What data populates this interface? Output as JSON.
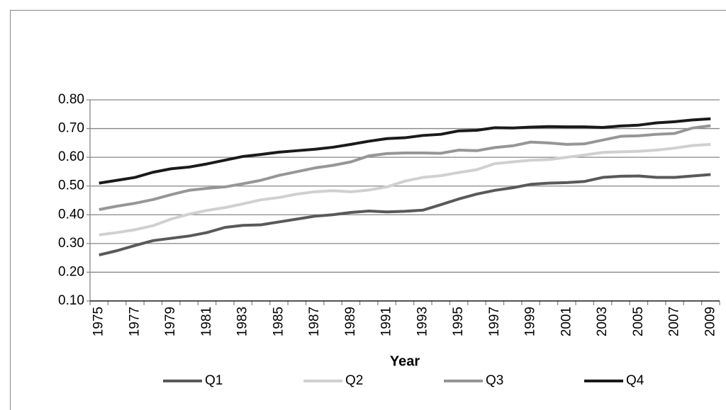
{
  "chart_data": {
    "type": "line",
    "x_label": "Year",
    "categories": [
      "1975",
      null,
      "1977",
      null,
      "1979",
      null,
      "1981",
      null,
      "1983",
      null,
      "1985",
      null,
      "1987",
      null,
      "1989",
      null,
      "1991",
      null,
      "1993",
      null,
      "1995",
      null,
      "1997",
      null,
      "1999",
      null,
      "2001",
      null,
      "2003",
      null,
      "2005",
      null,
      "2007",
      null,
      "2009"
    ],
    "series": [
      {
        "name": "Q1",
        "color": "#595959",
        "values": [
          0.26,
          0.275,
          0.293,
          0.31,
          0.318,
          0.326,
          0.338,
          0.356,
          0.363,
          0.365,
          0.375,
          0.385,
          0.395,
          0.4,
          0.408,
          0.413,
          0.41,
          0.412,
          0.416,
          0.435,
          0.455,
          0.472,
          0.485,
          0.494,
          0.506,
          0.51,
          0.512,
          0.516,
          0.53,
          0.534,
          0.535,
          0.53,
          0.53,
          0.535,
          0.54
        ]
      },
      {
        "name": "Q2",
        "color": "#d0d0d0",
        "values": [
          0.33,
          0.338,
          0.348,
          0.362,
          0.385,
          0.402,
          0.415,
          0.425,
          0.438,
          0.452,
          0.46,
          0.472,
          0.48,
          0.484,
          0.48,
          0.486,
          0.497,
          0.517,
          0.53,
          0.536,
          0.547,
          0.557,
          0.578,
          0.584,
          0.59,
          0.592,
          0.6,
          0.608,
          0.617,
          0.619,
          0.621,
          0.625,
          0.632,
          0.641,
          0.645
        ]
      },
      {
        "name": "Q3",
        "color": "#969696",
        "values": [
          0.418,
          0.43,
          0.44,
          0.453,
          0.47,
          0.485,
          0.492,
          0.497,
          0.508,
          0.52,
          0.537,
          0.55,
          0.563,
          0.572,
          0.584,
          0.605,
          0.613,
          0.615,
          0.615,
          0.614,
          0.625,
          0.623,
          0.634,
          0.64,
          0.653,
          0.65,
          0.645,
          0.647,
          0.66,
          0.673,
          0.675,
          0.68,
          0.683,
          0.702,
          0.71
        ]
      },
      {
        "name": "Q4",
        "color": "#1a1a1a",
        "values": [
          0.51,
          0.52,
          0.53,
          0.548,
          0.56,
          0.566,
          0.577,
          0.59,
          0.603,
          0.61,
          0.618,
          0.623,
          0.628,
          0.635,
          0.645,
          0.656,
          0.665,
          0.668,
          0.676,
          0.68,
          0.692,
          0.694,
          0.703,
          0.702,
          0.705,
          0.707,
          0.706,
          0.706,
          0.704,
          0.709,
          0.712,
          0.72,
          0.724,
          0.73,
          0.734
        ]
      }
    ],
    "ylim": [
      0.1,
      0.8
    ],
    "yticks": [
      {
        "value": 0.1,
        "label": "0.10"
      },
      {
        "value": 0.2,
        "label": "0.20"
      },
      {
        "value": 0.3,
        "label": "0.30"
      },
      {
        "value": 0.4,
        "label": "0.40"
      },
      {
        "value": 0.5,
        "label": "0.50"
      },
      {
        "value": 0.6,
        "label": "0.60"
      },
      {
        "value": 0.7,
        "label": "0.70"
      },
      {
        "value": 0.8,
        "label": "0.80"
      }
    ],
    "grid": true,
    "legend": "bottom"
  }
}
